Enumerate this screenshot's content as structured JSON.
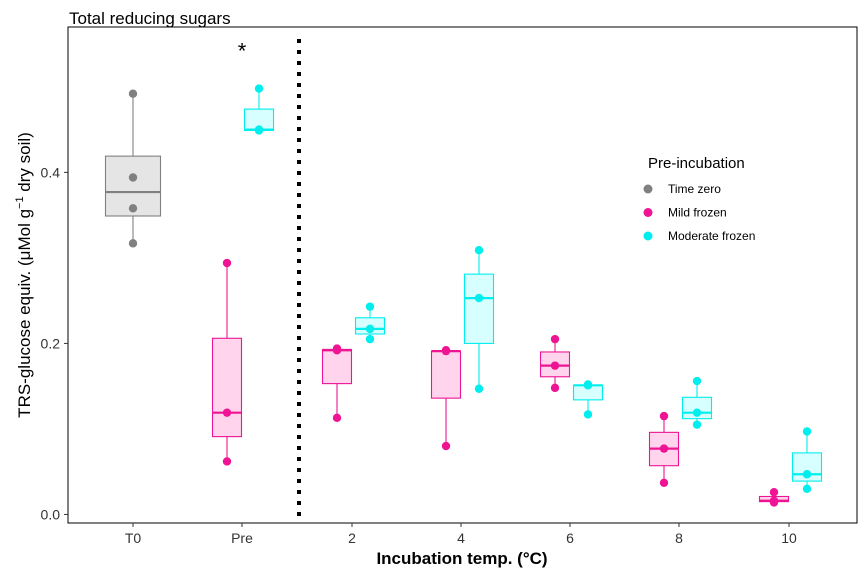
{
  "chart_data": {
    "type": "box",
    "title": "Total reducing sugars",
    "xlabel": "Incubation temp. (°C)",
    "ylabel_main": "TRS-glucose equiv. (μMol g",
    "ylabel_sup": "−1",
    "ylabel_tail": " dry soil)",
    "categories": [
      "T0",
      "Pre",
      "2",
      "4",
      "6",
      "8",
      "10"
    ],
    "ylim": [
      -0.01,
      0.57
    ],
    "yticks": [
      0.0,
      0.2,
      0.4
    ],
    "ytick_labels": [
      "0.0",
      "0.2",
      "0.4"
    ],
    "grid": false,
    "legend_position": "right",
    "legend": {
      "title": "Pre-incubation",
      "items": [
        {
          "label": "Time zero",
          "color": "#808080"
        },
        {
          "label": "Mild frozen",
          "color": "#ee1493"
        },
        {
          "label": "Moderate frozen",
          "color": "#00eeee"
        }
      ]
    },
    "annotations": [
      {
        "text": "*",
        "category": "Pre",
        "y": 0.545
      }
    ],
    "divider_after_category": "Pre",
    "colors": {
      "time_zero": {
        "stroke": "#808080",
        "fill": "#e5e5e5"
      },
      "mild": {
        "stroke": "#ee1493",
        "fill": "#ffd4ec"
      },
      "moderate": {
        "stroke": "#00eeee",
        "fill": "#d8ffff"
      }
    },
    "series": [
      {
        "name": "Time zero",
        "color_key": "time_zero",
        "boxes": [
          {
            "category": "T0",
            "min": 0.317,
            "q1": 0.349,
            "median": 0.377,
            "q3": 0.419,
            "max": 0.492,
            "points": [
              0.317,
              0.358,
              0.394,
              0.492
            ]
          }
        ]
      },
      {
        "name": "Mild frozen",
        "color_key": "mild",
        "boxes": [
          {
            "category": "Pre",
            "min": 0.062,
            "q1": 0.091,
            "median": 0.119,
            "q3": 0.206,
            "max": 0.294,
            "points": [
              0.062,
              0.119,
              0.294
            ]
          },
          {
            "category": "2",
            "min": 0.113,
            "q1": 0.153,
            "median": 0.192,
            "q3": 0.193,
            "max": 0.194,
            "points": [
              0.113,
              0.192,
              0.194
            ]
          },
          {
            "category": "4",
            "min": 0.08,
            "q1": 0.136,
            "median": 0.191,
            "q3": 0.191,
            "max": 0.192,
            "points": [
              0.08,
              0.191,
              0.192
            ]
          },
          {
            "category": "6",
            "min": 0.148,
            "q1": 0.161,
            "median": 0.174,
            "q3": 0.19,
            "max": 0.205,
            "points": [
              0.148,
              0.174,
              0.205
            ]
          },
          {
            "category": "8",
            "min": 0.037,
            "q1": 0.057,
            "median": 0.077,
            "q3": 0.096,
            "max": 0.115,
            "points": [
              0.037,
              0.077,
              0.115
            ]
          },
          {
            "category": "10",
            "min": 0.014,
            "q1": 0.015,
            "median": 0.016,
            "q3": 0.021,
            "max": 0.026,
            "points": [
              0.014,
              0.016,
              0.026
            ]
          }
        ]
      },
      {
        "name": "Moderate frozen",
        "color_key": "moderate",
        "boxes": [
          {
            "category": "Pre",
            "min": 0.449,
            "q1": 0.449,
            "median": 0.45,
            "q3": 0.474,
            "max": 0.498,
            "points": [
              0.449,
              0.45,
              0.498
            ]
          },
          {
            "category": "2",
            "min": 0.205,
            "q1": 0.211,
            "median": 0.217,
            "q3": 0.23,
            "max": 0.243,
            "points": [
              0.205,
              0.217,
              0.243
            ]
          },
          {
            "category": "4",
            "min": 0.147,
            "q1": 0.2,
            "median": 0.253,
            "q3": 0.281,
            "max": 0.309,
            "points": [
              0.147,
              0.253,
              0.309
            ]
          },
          {
            "category": "6",
            "min": 0.117,
            "q1": 0.134,
            "median": 0.151,
            "q3": 0.151,
            "max": 0.152,
            "points": [
              0.117,
              0.151,
              0.152
            ]
          },
          {
            "category": "8",
            "min": 0.105,
            "q1": 0.112,
            "median": 0.119,
            "q3": 0.137,
            "max": 0.156,
            "points": [
              0.105,
              0.119,
              0.156
            ]
          },
          {
            "category": "10",
            "min": 0.03,
            "q1": 0.039,
            "median": 0.047,
            "q3": 0.072,
            "max": 0.097,
            "points": [
              0.03,
              0.047,
              0.097
            ]
          }
        ]
      }
    ]
  }
}
